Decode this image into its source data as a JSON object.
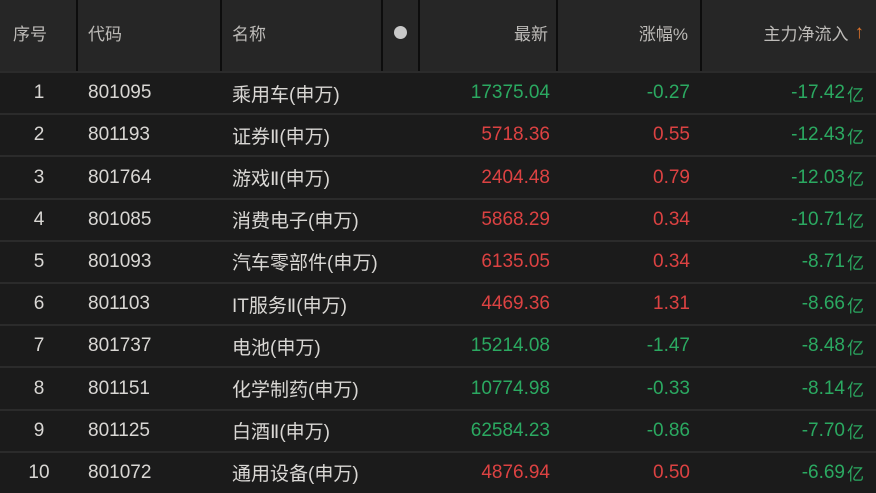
{
  "colors": {
    "bg_header": "#262626",
    "bg_row": "#1b1b1b",
    "sep": "#2b2b2b",
    "divider": "#0d0d0d",
    "text_head": "#bdbbb8",
    "text_main": "#d9d7d4",
    "green": "#2ba961",
    "red": "#dc4242",
    "orange": "#e0742b",
    "dot": "#c9c9c9"
  },
  "table": {
    "columns": [
      {
        "key": "seq",
        "label": "序号"
      },
      {
        "key": "code",
        "label": "代码"
      },
      {
        "key": "name",
        "label": "名称"
      },
      {
        "key": "marker",
        "label": "",
        "icon": "dot-icon"
      },
      {
        "key": "latest",
        "label": "最新"
      },
      {
        "key": "change",
        "label": "涨幅%"
      },
      {
        "key": "inflow",
        "label": "主力净流入",
        "sort_indicator": "↑",
        "sort_direction": "ascending"
      }
    ],
    "rows": [
      {
        "seq": "1",
        "code": "801095",
        "name": "乘用车(申万)",
        "latest": "17375.04",
        "latest_color": "green",
        "change": "-0.27",
        "change_color": "green",
        "inflow": "-17.42",
        "inflow_unit": "亿",
        "inflow_color": "green"
      },
      {
        "seq": "2",
        "code": "801193",
        "name": "证券Ⅱ(申万)",
        "latest": "5718.36",
        "latest_color": "red",
        "change": "0.55",
        "change_color": "red",
        "inflow": "-12.43",
        "inflow_unit": "亿",
        "inflow_color": "green"
      },
      {
        "seq": "3",
        "code": "801764",
        "name": "游戏Ⅱ(申万)",
        "latest": "2404.48",
        "latest_color": "red",
        "change": "0.79",
        "change_color": "red",
        "inflow": "-12.03",
        "inflow_unit": "亿",
        "inflow_color": "green"
      },
      {
        "seq": "4",
        "code": "801085",
        "name": "消费电子(申万)",
        "latest": "5868.29",
        "latest_color": "red",
        "change": "0.34",
        "change_color": "red",
        "inflow": "-10.71",
        "inflow_unit": "亿",
        "inflow_color": "green"
      },
      {
        "seq": "5",
        "code": "801093",
        "name": "汽车零部件(申万)",
        "latest": "6135.05",
        "latest_color": "red",
        "change": "0.34",
        "change_color": "red",
        "inflow": "-8.71",
        "inflow_unit": "亿",
        "inflow_color": "green"
      },
      {
        "seq": "6",
        "code": "801103",
        "name": "IT服务Ⅱ(申万)",
        "latest": "4469.36",
        "latest_color": "red",
        "change": "1.31",
        "change_color": "red",
        "inflow": "-8.66",
        "inflow_unit": "亿",
        "inflow_color": "green"
      },
      {
        "seq": "7",
        "code": "801737",
        "name": "电池(申万)",
        "latest": "15214.08",
        "latest_color": "green",
        "change": "-1.47",
        "change_color": "green",
        "inflow": "-8.48",
        "inflow_unit": "亿",
        "inflow_color": "green"
      },
      {
        "seq": "8",
        "code": "801151",
        "name": "化学制药(申万)",
        "latest": "10774.98",
        "latest_color": "green",
        "change": "-0.33",
        "change_color": "green",
        "inflow": "-8.14",
        "inflow_unit": "亿",
        "inflow_color": "green"
      },
      {
        "seq": "9",
        "code": "801125",
        "name": "白酒Ⅱ(申万)",
        "latest": "62584.23",
        "latest_color": "green",
        "change": "-0.86",
        "change_color": "green",
        "inflow": "-7.70",
        "inflow_unit": "亿",
        "inflow_color": "green"
      },
      {
        "seq": "10",
        "code": "801072",
        "name": "通用设备(申万)",
        "latest": "4876.94",
        "latest_color": "red",
        "change": "0.50",
        "change_color": "red",
        "inflow": "-6.69",
        "inflow_unit": "亿",
        "inflow_color": "green"
      }
    ]
  }
}
